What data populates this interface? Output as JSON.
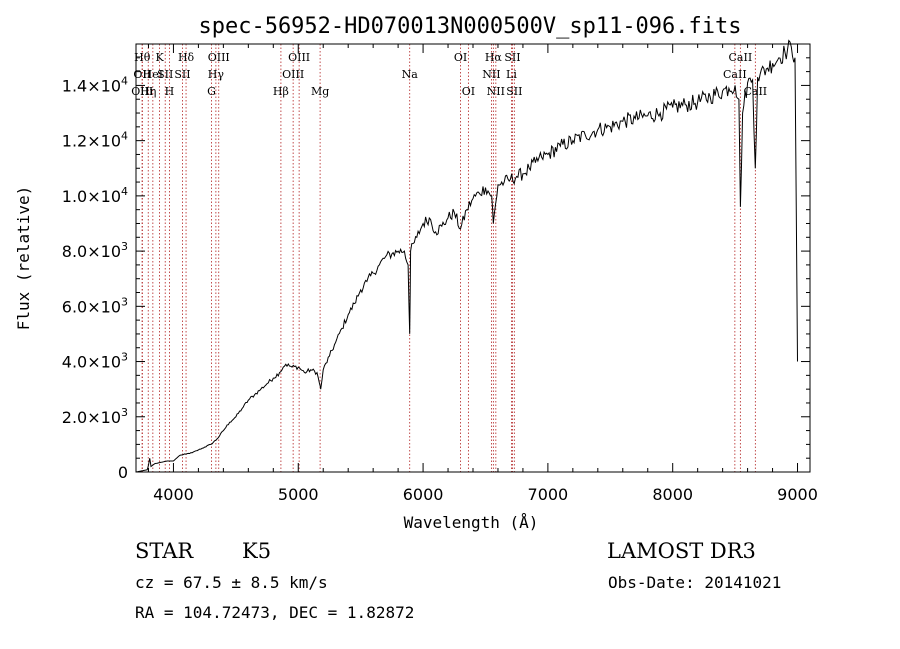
{
  "chart_data": {
    "type": "line",
    "title": "spec-56952-HD070013N000500V_sp11-096.fits",
    "xlabel": "Wavelength (Å)",
    "ylabel": "Flux (relative)",
    "xlim": [
      3700,
      9100
    ],
    "ylim": [
      0,
      15500
    ],
    "x_ticks": [
      4000,
      5000,
      6000,
      7000,
      8000,
      9000
    ],
    "x_tick_labels": [
      "4000",
      "5000",
      "6000",
      "7000",
      "8000",
      "9000"
    ],
    "y_ticks": [
      0,
      2000,
      4000,
      6000,
      8000,
      10000,
      12000,
      14000
    ],
    "y_tick_labels": [
      {
        "mant": "0",
        "exp": ""
      },
      {
        "mant": "2.0×10",
        "exp": "3"
      },
      {
        "mant": "4.0×10",
        "exp": "3"
      },
      {
        "mant": "6.0×10",
        "exp": "3"
      },
      {
        "mant": "8.0×10",
        "exp": "3"
      },
      {
        "mant": "1.0×10",
        "exp": "4"
      },
      {
        "mant": "1.2×10",
        "exp": "4"
      },
      {
        "mant": "1.4×10",
        "exp": "4"
      }
    ],
    "series": [
      {
        "name": "spectrum",
        "x": [
          3700,
          3790,
          3800,
          3810,
          3820,
          3850,
          3900,
          3950,
          4000,
          4050,
          4100,
          4150,
          4200,
          4250,
          4300,
          4350,
          4400,
          4450,
          4500,
          4550,
          4600,
          4650,
          4700,
          4750,
          4800,
          4850,
          4880,
          4900,
          4950,
          5000,
          5050,
          5100,
          5150,
          5170,
          5180,
          5200,
          5250,
          5300,
          5350,
          5400,
          5450,
          5500,
          5550,
          5600,
          5650,
          5700,
          5750,
          5800,
          5850,
          5880,
          5893,
          5900,
          5950,
          6000,
          6050,
          6100,
          6150,
          6200,
          6250,
          6300,
          6350,
          6400,
          6450,
          6500,
          6550,
          6563,
          6600,
          6650,
          6700,
          6750,
          6800,
          6850,
          6900,
          6950,
          7000,
          7100,
          7200,
          7300,
          7400,
          7500,
          7600,
          7700,
          7800,
          7900,
          8000,
          8100,
          8200,
          8300,
          8400,
          8450,
          8500,
          8530,
          8542,
          8560,
          8600,
          8640,
          8662,
          8680,
          8700,
          8750,
          8800,
          8850,
          8900,
          8950,
          8980,
          9000
        ],
        "y": [
          0,
          80,
          250,
          500,
          200,
          300,
          350,
          400,
          400,
          600,
          650,
          700,
          800,
          900,
          1000,
          1200,
          1500,
          1800,
          2000,
          2300,
          2600,
          2800,
          3000,
          3200,
          3400,
          3600,
          3800,
          3900,
          3800,
          3800,
          3600,
          3700,
          3600,
          3200,
          3000,
          3700,
          4200,
          4700,
          5200,
          5700,
          6100,
          6600,
          6900,
          7200,
          7500,
          7800,
          7900,
          8000,
          8000,
          7500,
          5000,
          8000,
          8500,
          9000,
          9200,
          8700,
          8900,
          9200,
          9400,
          8800,
          9500,
          9900,
          10100,
          10300,
          10000,
          9000,
          10400,
          10500,
          10600,
          10700,
          10800,
          11000,
          11200,
          11400,
          11500,
          11800,
          12000,
          12200,
          12400,
          12500,
          12700,
          12800,
          12900,
          13000,
          13200,
          13300,
          13400,
          13600,
          13800,
          13900,
          14000,
          13500,
          9600,
          13000,
          14100,
          14200,
          11000,
          14300,
          14400,
          14600,
          14800,
          15000,
          15200,
          15400,
          15000,
          4000
        ]
      }
    ],
    "lines": [
      {
        "x": 3750,
        "label": "Hθ",
        "row": 0
      },
      {
        "x": 3750,
        "label": "OII",
        "row": 1
      },
      {
        "x": 3750,
        "label": "OIII",
        "row": 2
      },
      {
        "x": 3798,
        "label": "Hη",
        "row": 2
      },
      {
        "x": 3835,
        "label": "HeI",
        "row": 1
      },
      {
        "x": 3889,
        "label": "K",
        "row": 0
      },
      {
        "x": 3934,
        "label": "SII",
        "row": 1
      },
      {
        "x": 3968,
        "label": "H",
        "row": 2
      },
      {
        "x": 4101,
        "label": "Hδ",
        "row": 0
      },
      {
        "x": 4072,
        "label": "SII",
        "row": 1
      },
      {
        "x": 4340,
        "label": "Hγ",
        "row": 1
      },
      {
        "x": 4363,
        "label": "OIII",
        "row": 0
      },
      {
        "x": 4305,
        "label": "G",
        "row": 2
      },
      {
        "x": 4861,
        "label": "Hβ",
        "row": 2
      },
      {
        "x": 4959,
        "label": "OIII",
        "row": 1
      },
      {
        "x": 5007,
        "label": "OIII",
        "row": 0
      },
      {
        "x": 5175,
        "label": "Mg",
        "row": 2
      },
      {
        "x": 5893,
        "label": "Na",
        "row": 1
      },
      {
        "x": 6300,
        "label": "OI",
        "row": 0
      },
      {
        "x": 6363,
        "label": "OI",
        "row": 2
      },
      {
        "x": 6548,
        "label": "NII",
        "row": 1
      },
      {
        "x": 6563,
        "label": "Hα",
        "row": 0
      },
      {
        "x": 6583,
        "label": "NII",
        "row": 2
      },
      {
        "x": 6708,
        "label": "Li",
        "row": 1
      },
      {
        "x": 6716,
        "label": "SII",
        "row": 0
      },
      {
        "x": 6731,
        "label": "SII",
        "row": 2
      },
      {
        "x": 8498,
        "label": "CaII",
        "row": 1
      },
      {
        "x": 8542,
        "label": "CaII",
        "row": 0
      },
      {
        "x": 8662,
        "label": "CaII",
        "row": 2
      }
    ]
  },
  "info": {
    "object_type": "STAR",
    "subclass": "K5",
    "survey": "LAMOST DR3",
    "cz": "cz = 67.5 ± 8.5 km/s",
    "obs_date": "Obs-Date: 20141021",
    "coords": "RA = 104.72473, DEC =    1.82872"
  }
}
